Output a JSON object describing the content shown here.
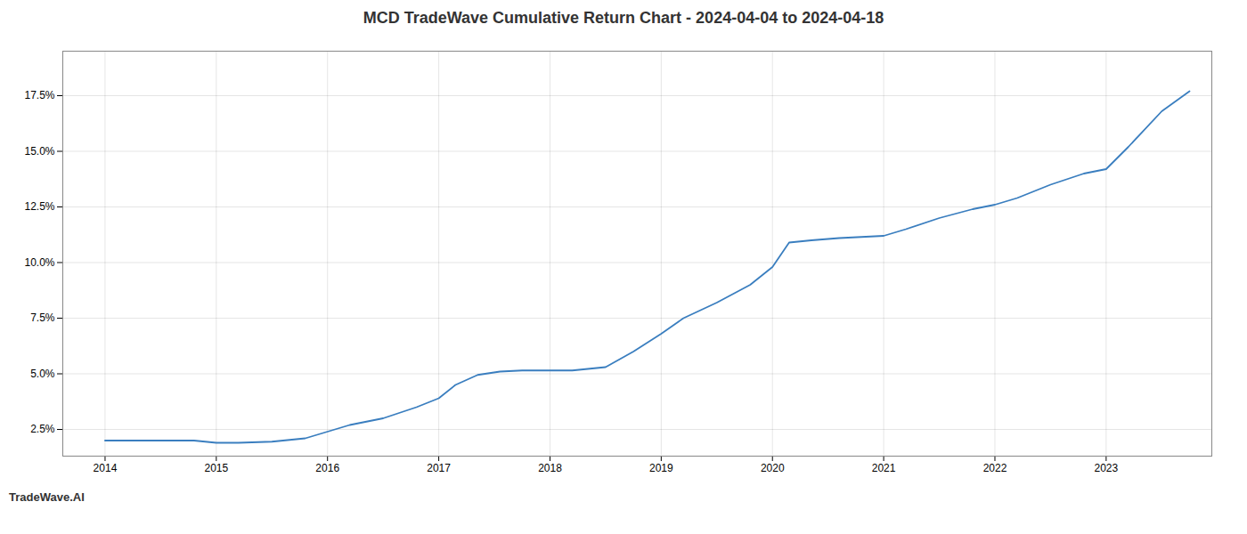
{
  "chart_data": {
    "type": "line",
    "title": "MCD TradeWave Cumulative Return Chart - 2024-04-04 to 2024-04-18",
    "annotations": [
      "TradeWave.AI"
    ],
    "x": [
      2014.0,
      2014.2,
      2014.5,
      2014.8,
      2015.0,
      2015.2,
      2015.5,
      2015.8,
      2016.0,
      2016.2,
      2016.5,
      2016.8,
      2017.0,
      2017.15,
      2017.35,
      2017.55,
      2017.75,
      2018.0,
      2018.2,
      2018.5,
      2018.75,
      2019.0,
      2019.2,
      2019.5,
      2019.8,
      2020.0,
      2020.15,
      2020.35,
      2020.6,
      2020.8,
      2021.0,
      2021.2,
      2021.5,
      2021.8,
      2022.0,
      2022.2,
      2022.5,
      2022.8,
      2023.0,
      2023.2,
      2023.5,
      2023.75
    ],
    "values": [
      2.0,
      2.0,
      2.0,
      2.0,
      1.9,
      1.9,
      1.95,
      2.1,
      2.4,
      2.7,
      3.0,
      3.5,
      3.9,
      4.5,
      4.95,
      5.1,
      5.15,
      5.15,
      5.15,
      5.3,
      6.0,
      6.8,
      7.5,
      8.2,
      9.0,
      9.8,
      10.9,
      11.0,
      11.1,
      11.15,
      11.2,
      11.5,
      12.0,
      12.4,
      12.6,
      12.9,
      13.5,
      14.0,
      14.2,
      15.2,
      16.8,
      17.7
    ],
    "color": "#3a7ebf",
    "xlim": [
      2013.62,
      2023.95
    ],
    "xticks": [
      2014,
      2015,
      2016,
      2017,
      2018,
      2019,
      2020,
      2021,
      2022,
      2023
    ],
    "ylim": [
      1.3,
      19.5
    ],
    "yticks": [
      {
        "value": 2.5,
        "label": "2.5%"
      },
      {
        "value": 5.0,
        "label": "5.0%"
      },
      {
        "value": 7.5,
        "label": "7.5%"
      },
      {
        "value": 10.0,
        "label": "10.0%"
      },
      {
        "value": 12.5,
        "label": "12.5%"
      },
      {
        "value": 15.0,
        "label": "15.0%"
      },
      {
        "value": 17.5,
        "label": "17.5%"
      }
    ],
    "grid": true
  }
}
